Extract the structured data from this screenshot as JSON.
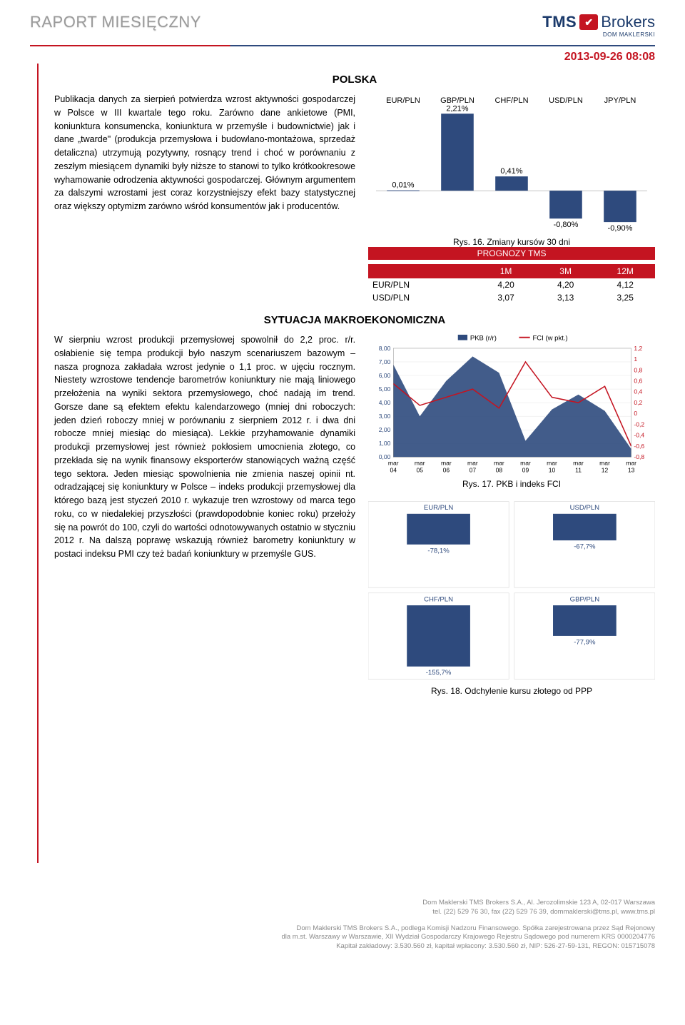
{
  "header": {
    "report_title": "RAPORT MIESIĘCZNY",
    "logo_tms": "TMS",
    "logo_brokers": "Brokers",
    "logo_sub": "DOM MAKLERSKI",
    "date": "2013-09-26 08:08"
  },
  "country_title": "POLSKA",
  "para1": "Publikacja danych za sierpień potwierdza wzrost aktywności gospodarczej w Polsce w III kwartale tego roku. Zarówno dane ankietowe (PMI, koniunktura konsumencka, koniunktura w przemyśle i budownictwie) jak i dane „twarde\" (produkcja przemysłowa i budowlano-montażowa, sprzedaż detaliczna) utrzymują pozytywny, rosnący trend i choć w porównaniu z zeszłym miesiącem dynamiki były niższe to stanowi to tylko krótkookresowe wyhamowanie odrodzenia aktywności gospodarczej. Głównym argumentem za dalszymi wzrostami jest coraz korzystniejszy efekt bazy statystycznej oraz większy optymizm zarówno wśród konsumentów jak i producentów.",
  "chart1": {
    "type": "bar",
    "title_caption": "Rys. 16. Zmiany kursów 30 dni",
    "categories": [
      "EUR/PLN",
      "GBP/PLN",
      "CHF/PLN",
      "USD/PLN",
      "JPY/PLN"
    ],
    "values": [
      0.01,
      2.21,
      0.41,
      -0.8,
      -0.9
    ],
    "value_labels": [
      "0,01%",
      "2,21%",
      "0,41%",
      "-0,80%",
      "-0,90%"
    ],
    "bar_color": "#2e4a7d",
    "label_fontsize": 11,
    "category_fontsize": 11,
    "category_color": "#000000",
    "ymin": -1.0,
    "ymax": 2.4,
    "background": "#ffffff"
  },
  "forecast_table": {
    "title": "PROGNOZY TMS",
    "header_bg": "#c41421",
    "header_fg": "#ffffff",
    "columns": [
      "",
      "1M",
      "3M",
      "12M"
    ],
    "rows": [
      [
        "EUR/PLN",
        "4,20",
        "4,20",
        "4,12"
      ],
      [
        "USD/PLN",
        "3,07",
        "3,13",
        "3,25"
      ]
    ]
  },
  "section_title": "SYTUACJA MAKROEKONOMICZNA",
  "para2": "W sierpniu wzrost produkcji przemysłowej spowolnił do 2,2 proc. r/r. osłabienie się tempa produkcji było naszym scenariuszem bazowym – nasza prognoza zakładała wzrost jedynie o 1,1 proc. w ujęciu rocznym. Niestety wzrostowe tendencje barometrów koniunktury nie mają liniowego przełożenia na wyniki sektora przemysłowego, choć nadają im trend. Gorsze dane są efektem efektu kalendarzowego (mniej dni roboczych: jeden dzień roboczy mniej w porównaniu z sierpniem 2012 r. i dwa dni robocze mniej miesiąc do miesiąca). Lekkie przyhamowanie dynamiki produkcji przemysłowej jest również pokłosiem umocnienia złotego, co przekłada się na wynik finansowy eksporterów stanowiących ważną część tego sektora. Jeden miesiąc spowolnienia nie zmienia naszej opinii nt. odradzającej się koniunktury w Polsce – indeks produkcji przemysłowej dla którego bazą jest styczeń 2010 r. wykazuje tren wzrostowy od marca tego roku, co w niedalekiej przyszłości (prawdopodobnie koniec roku) przełoży się na powrót do 100, czyli do wartości odnotowywanych ostatnio w styczniu 2012 r. Na dalszą poprawę wskazują również barometry koniunktury w postaci indeksu PMI czy też badań koniunktury w przemyśle GUS.",
  "chart2": {
    "type": "line",
    "caption": "Rys. 17. PKB i indeks FCI",
    "legend": [
      {
        "label": "PKB (r/r)",
        "color": "#2e4a7d"
      },
      {
        "label": "FCI (w pkt.)",
        "color": "#c41421"
      }
    ],
    "x_labels": [
      "mar 04",
      "mar 05",
      "mar 06",
      "mar 07",
      "mar 08",
      "mar 09",
      "mar 10",
      "mar 11",
      "mar 12",
      "mar 13"
    ],
    "y_left": {
      "min": 0,
      "max": 8,
      "ticks": [
        "0,00",
        "1,00",
        "2,00",
        "3,00",
        "4,00",
        "5,00",
        "6,00",
        "7,00",
        "8,00"
      ],
      "color": "#2e4a7d"
    },
    "y_right": {
      "min": -0.8,
      "max": 1.2,
      "ticks": [
        "-0,8",
        "-0,6",
        "-0,4",
        "-0,2",
        "0",
        "0,2",
        "0,4",
        "0,6",
        "0,8",
        "1",
        "1,2"
      ],
      "color": "#c41421"
    },
    "series_pkb": [
      6.8,
      3.0,
      5.6,
      7.4,
      6.2,
      1.2,
      3.5,
      4.6,
      3.4,
      0.6
    ],
    "series_fci": [
      0.55,
      0.15,
      0.3,
      0.45,
      0.1,
      0.95,
      0.3,
      0.2,
      0.5,
      -0.6
    ],
    "grid_color": "#e5e5e5",
    "label_fontsize": 9
  },
  "chart3": {
    "type": "grouped-bar-panels",
    "caption": "Rys. 18. Odchylenie kursu złotego od PPP",
    "panels": [
      "EUR/PLN",
      "USD/PLN",
      "CHF/PLN",
      "GBP/PLN"
    ],
    "values": [
      -78.1,
      -67.7,
      -155.7,
      -77.9
    ],
    "value_labels": [
      "-78,1%",
      "-67,7%",
      "-155,7%",
      "-77,9%"
    ],
    "bar_color": "#2e4a7d",
    "label_color": "#2e4a7d",
    "panel_label_color": "#2e4a7d",
    "background": "#ffffff",
    "ymin": -160,
    "ymax": 0
  },
  "footer": {
    "line1": "Dom Maklerski TMS Brokers S.A., Al. Jerozolimskie 123 A, 02-017 Warszawa",
    "line2": "tel. (22) 529 76 30, fax (22) 529 76 39, dommaklerski@tms.pl, www.tms.pl",
    "line3": "Dom Maklerski TMS Brokers S.A., podlega Komisji Nadzoru Finansowego. Spółka zarejestrowana przez Sąd Rejonowy",
    "line4": "dla m.st. Warszawy w Warszawie, XII Wydział Gospodarczy Krajowego Rejestru Sądowego pod numerem KRS 0000204776",
    "line5": "Kapitał zakładowy: 3.530.560 zł, kapitał wpłacony: 3.530.560 zł, NIP: 526-27-59-131, REGON: 015715078"
  }
}
